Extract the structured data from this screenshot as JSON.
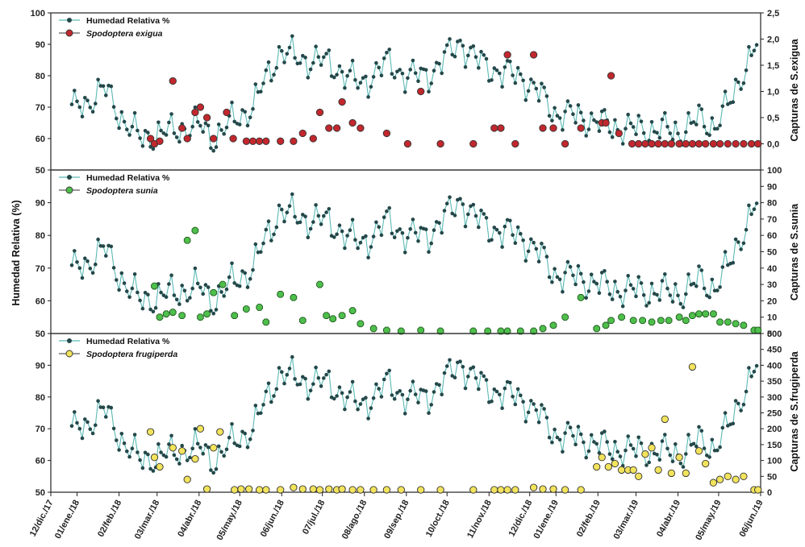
{
  "chart_data": [
    {
      "type": "line",
      "panel": "top",
      "ylabel_left": "Humedad Relativa (%)",
      "ylabel_right": "Capturas de S.exigua",
      "ylim_left": [
        50,
        100
      ],
      "yticks_left": [
        "50",
        "60",
        "70",
        "80",
        "90",
        "100"
      ],
      "ylim_right": [
        -0.5,
        2.5
      ],
      "yticks_right": [
        "0,0",
        "0,5",
        "1,0",
        "1,5",
        "2,0",
        "2,5"
      ],
      "legend": [
        "Humedad Relativa %",
        "Spodoptera exigua"
      ],
      "legend_position": "top-left",
      "colors": {
        "humidity_line": "#5bb9b5",
        "humidity_marker": "#24484a",
        "species": "#c2272d"
      },
      "series": [
        {
          "name": "Spodoptera exigua",
          "x": [
            "2018-02-26",
            "2018-03-01",
            "2018-03-05",
            "2018-03-15",
            "2018-03-22",
            "2018-03-26",
            "2018-04-01",
            "2018-04-05",
            "2018-04-10",
            "2018-04-15",
            "2018-04-25",
            "2018-04-30",
            "2018-05-10",
            "2018-05-15",
            "2018-05-20",
            "2018-05-25",
            "2018-06-05",
            "2018-06-15",
            "2018-06-22",
            "2018-06-30",
            "2018-07-05",
            "2018-07-12",
            "2018-07-18",
            "2018-07-22",
            "2018-07-30",
            "2018-08-05",
            "2018-08-25",
            "2018-09-10",
            "2018-09-20",
            "2018-10-05",
            "2018-10-30",
            "2018-11-15",
            "2018-11-20",
            "2018-11-25",
            "2018-12-01",
            "2018-12-15",
            "2018-12-22",
            "2018-12-30",
            "2019-01-08",
            "2019-01-20",
            "2019-02-05",
            "2019-02-08",
            "2019-02-12",
            "2019-02-18",
            "2019-02-28",
            "2019-03-05",
            "2019-03-10",
            "2019-03-15",
            "2019-03-20",
            "2019-03-25",
            "2019-03-30",
            "2019-04-05",
            "2019-04-10",
            "2019-04-15",
            "2019-04-20",
            "2019-04-25",
            "2019-05-01",
            "2019-05-06",
            "2019-05-12",
            "2019-05-18",
            "2019-05-24",
            "2019-05-30",
            "2019-06-04"
          ],
          "values": [
            0.1,
            0.0,
            0.05,
            1.2,
            0.3,
            0.1,
            0.6,
            0.7,
            0.5,
            0.1,
            0.6,
            0.1,
            0.05,
            0.05,
            0.05,
            0.05,
            0.05,
            0.05,
            0.2,
            0.1,
            0.6,
            0.3,
            0.3,
            0.8,
            0.4,
            0.3,
            0.2,
            0.0,
            1.0,
            0.0,
            0.0,
            0.3,
            0.3,
            1.7,
            0.0,
            1.7,
            0.3,
            0.3,
            0.0,
            0.3,
            0.4,
            0.4,
            1.3,
            0.2,
            0.0,
            0.0,
            0.0,
            0.0,
            0.0,
            0.0,
            0.0,
            0.0,
            0.0,
            0.0,
            0.0,
            0.0,
            0.0,
            0.0,
            0.0,
            0.0,
            0.0,
            0.0,
            0.0
          ]
        }
      ]
    },
    {
      "type": "line",
      "panel": "middle",
      "ylabel_right": "Capturas de S.sunia",
      "ylim_left": [
        50,
        100
      ],
      "yticks_left": [
        "50",
        "60",
        "70",
        "80",
        "90"
      ],
      "ylim_right": [
        0,
        100
      ],
      "yticks_right": [
        "0",
        "10",
        "20",
        "30",
        "40",
        "50",
        "60",
        "70",
        "80",
        "90",
        "100"
      ],
      "legend": [
        "Humedad Relativa %",
        "Spodoptera sunia"
      ],
      "legend_position": "top-left",
      "colors": {
        "species": "#4fbf4c"
      },
      "series": [
        {
          "name": "Spodoptera sunia",
          "x": [
            "2018-03-01",
            "2018-03-05",
            "2018-03-10",
            "2018-03-15",
            "2018-03-22",
            "2018-03-26",
            "2018-04-01",
            "2018-04-05",
            "2018-04-10",
            "2018-04-15",
            "2018-04-22",
            "2018-05-01",
            "2018-05-10",
            "2018-05-20",
            "2018-05-25",
            "2018-06-05",
            "2018-06-15",
            "2018-06-22",
            "2018-07-05",
            "2018-07-10",
            "2018-07-15",
            "2018-07-22",
            "2018-07-30",
            "2018-08-05",
            "2018-08-15",
            "2018-08-25",
            "2018-09-05",
            "2018-09-20",
            "2018-10-05",
            "2018-10-30",
            "2018-11-10",
            "2018-11-20",
            "2018-11-25",
            "2018-12-05",
            "2018-12-15",
            "2018-12-22",
            "2018-12-30",
            "2019-01-08",
            "2019-01-20",
            "2019-02-01",
            "2019-02-08",
            "2019-02-12",
            "2019-02-20",
            "2019-03-01",
            "2019-03-08",
            "2019-03-15",
            "2019-03-22",
            "2019-03-28",
            "2019-04-05",
            "2019-04-10",
            "2019-04-15",
            "2019-04-20",
            "2019-04-25",
            "2019-05-01",
            "2019-05-06",
            "2019-05-12",
            "2019-05-18",
            "2019-05-24",
            "2019-06-01",
            "2019-06-04"
          ],
          "values": [
            29,
            10,
            12,
            13,
            11,
            57,
            63,
            10,
            12,
            25,
            30,
            11,
            15,
            16,
            7,
            24,
            22,
            8,
            30,
            11,
            9,
            11,
            14,
            6,
            3,
            2,
            1,
            2,
            1,
            1,
            1,
            1,
            1,
            1,
            1,
            3,
            5,
            10,
            22,
            3,
            5,
            8,
            10,
            8,
            8,
            7,
            8,
            8,
            10,
            8,
            11,
            12,
            12,
            12,
            7,
            7,
            6,
            5,
            2,
            2
          ]
        }
      ]
    },
    {
      "type": "line",
      "panel": "bottom",
      "ylabel_right": "Capturas de S.frugiperda",
      "ylim_left": [
        50,
        100
      ],
      "yticks_left": [
        "50",
        "60",
        "70",
        "80",
        "90"
      ],
      "ylim_right": [
        0,
        500
      ],
      "yticks_right": [
        "0",
        "50",
        "100",
        "150",
        "200",
        "250",
        "300",
        "350",
        "400",
        "450",
        "500"
      ],
      "legend": [
        "Humedad Relativa %",
        "Spodoptera frugiperda"
      ],
      "legend_position": "top-left",
      "colors": {
        "species": "#f2e35c"
      },
      "series": [
        {
          "name": "Spodoptera frugiperda",
          "x": [
            "2018-02-26",
            "2018-03-01",
            "2018-03-05",
            "2018-03-15",
            "2018-03-22",
            "2018-03-26",
            "2018-04-01",
            "2018-04-05",
            "2018-04-10",
            "2018-04-15",
            "2018-04-20",
            "2018-05-01",
            "2018-05-06",
            "2018-05-12",
            "2018-05-20",
            "2018-05-25",
            "2018-06-05",
            "2018-06-15",
            "2018-06-22",
            "2018-06-30",
            "2018-07-05",
            "2018-07-12",
            "2018-07-18",
            "2018-07-22",
            "2018-07-30",
            "2018-08-05",
            "2018-08-15",
            "2018-08-25",
            "2018-09-05",
            "2018-09-20",
            "2018-10-05",
            "2018-10-30",
            "2018-11-15",
            "2018-11-20",
            "2018-11-25",
            "2018-12-01",
            "2018-12-15",
            "2018-12-22",
            "2018-12-30",
            "2019-01-08",
            "2019-01-20",
            "2019-02-01",
            "2019-02-05",
            "2019-02-10",
            "2019-02-15",
            "2019-02-20",
            "2019-02-25",
            "2019-03-01",
            "2019-03-05",
            "2019-03-10",
            "2019-03-15",
            "2019-03-20",
            "2019-03-25",
            "2019-03-30",
            "2019-04-05",
            "2019-04-10",
            "2019-04-15",
            "2019-04-20",
            "2019-04-25",
            "2019-05-01",
            "2019-05-06",
            "2019-05-12",
            "2019-05-18",
            "2019-05-24",
            "2019-06-01",
            "2019-06-04"
          ],
          "values": [
            190,
            110,
            80,
            140,
            130,
            40,
            105,
            200,
            10,
            140,
            190,
            5,
            10,
            10,
            5,
            5,
            5,
            15,
            10,
            10,
            5,
            10,
            5,
            10,
            5,
            5,
            0,
            0,
            0,
            0,
            0,
            0,
            0,
            0,
            0,
            0,
            15,
            10,
            10,
            5,
            0,
            80,
            110,
            80,
            90,
            70,
            70,
            70,
            50,
            120,
            140,
            70,
            230,
            60,
            110,
            60,
            395,
            130,
            90,
            30,
            40,
            50,
            40,
            50,
            5,
            0
          ]
        }
      ]
    }
  ],
  "humidity": {
    "name": "Humedad Relativa %",
    "x_start": "2017-12-28",
    "x_end": "2019-06-04",
    "anchors_x": [
      "2017-12-28",
      "2018-01-10",
      "2018-01-22",
      "2018-02-05",
      "2018-02-18",
      "2018-03-01",
      "2018-03-20",
      "2018-04-05",
      "2018-04-15",
      "2018-05-01",
      "2018-05-15",
      "2018-05-25",
      "2018-06-05",
      "2018-06-20",
      "2018-07-05",
      "2018-07-20",
      "2018-08-05",
      "2018-08-25",
      "2018-09-10",
      "2018-09-25",
      "2018-10-10",
      "2018-10-20",
      "2018-11-01",
      "2018-11-20",
      "2018-12-05",
      "2018-12-20",
      "2019-01-01",
      "2019-01-20",
      "2019-02-10",
      "2019-03-01",
      "2019-03-20",
      "2019-04-05",
      "2019-04-20",
      "2019-05-01",
      "2019-05-15",
      "2019-05-25",
      "2019-06-04"
    ],
    "anchors_y": [
      69,
      72,
      76,
      66,
      60,
      61,
      63,
      64,
      60,
      66,
      70,
      79,
      88,
      85,
      85,
      82,
      77,
      84,
      80,
      80,
      86,
      91,
      85,
      81,
      80,
      74,
      68,
      67,
      64,
      63,
      63,
      62,
      66,
      64,
      72,
      83,
      91
    ]
  },
  "x_axis": {
    "xlim": [
      "2017-12-12",
      "2019-06-06"
    ],
    "tick_labels": [
      "12/dic./17",
      "01/ene./18",
      "02/feb./18",
      "03/mar./18",
      "04/abr./18",
      "05/may./18",
      "06/jun./18",
      "07/jul./18",
      "08/ago./18",
      "09/sep./18",
      "10/oct./18",
      "11/nov./18",
      "12/dic./18",
      "01/ene./19",
      "02/feb./19",
      "03/mar./19",
      "04/abr./19",
      "05/may./19",
      "06/jun./19"
    ],
    "tick_dates": [
      "2017-12-12",
      "2018-01-01",
      "2018-02-02",
      "2018-03-03",
      "2018-04-04",
      "2018-05-05",
      "2018-06-06",
      "2018-07-07",
      "2018-08-08",
      "2018-09-09",
      "2018-10-10",
      "2018-11-11",
      "2018-12-12",
      "2019-01-01",
      "2019-02-02",
      "2019-03-03",
      "2019-04-04",
      "2019-05-05",
      "2019-06-06"
    ]
  }
}
